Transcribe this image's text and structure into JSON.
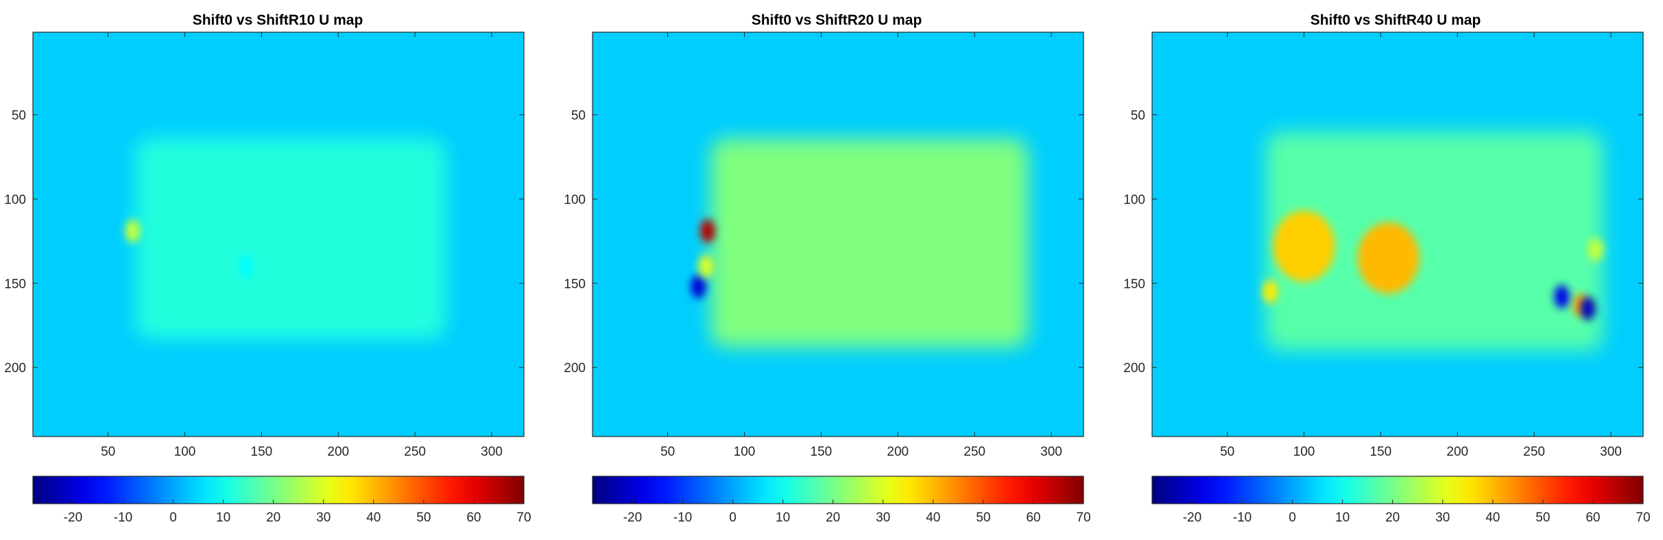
{
  "chart_data": [
    {
      "type": "heatmap",
      "title": "Shift0 vs ShiftR10 U map",
      "xlim": [
        1,
        321
      ],
      "ylim": [
        1,
        241
      ],
      "x_ticks": [
        50,
        100,
        150,
        200,
        250,
        300
      ],
      "y_ticks": [
        50,
        100,
        150,
        200
      ],
      "colorbar": {
        "colormap": "jet",
        "range": [
          -28,
          70
        ],
        "ticks": [
          -20,
          -10,
          0,
          10,
          20,
          30,
          40,
          50,
          60,
          70
        ]
      },
      "background_value": 4,
      "regions": [
        {
          "x": [
            68,
            270
          ],
          "y": [
            64,
            183
          ],
          "value": 12
        }
      ],
      "hotspots": [
        {
          "x": 66,
          "y": 119,
          "value": 28
        },
        {
          "x": 140,
          "y": 140,
          "value": 9
        }
      ]
    },
    {
      "type": "heatmap",
      "title": "Shift0 vs ShiftR20 U map",
      "xlim": [
        1,
        321
      ],
      "ylim": [
        1,
        241
      ],
      "x_ticks": [
        50,
        100,
        150,
        200,
        250,
        300
      ],
      "y_ticks": [
        50,
        100,
        150,
        200
      ],
      "colorbar": {
        "colormap": "jet",
        "range": [
          -28,
          70
        ],
        "ticks": [
          -20,
          -10,
          0,
          10,
          20,
          30,
          40,
          50,
          60,
          70
        ]
      },
      "background_value": 4,
      "regions": [
        {
          "x": [
            78,
            285
          ],
          "y": [
            64,
            188
          ],
          "value": 21
        }
      ],
      "hotspots": [
        {
          "x": 76,
          "y": 119,
          "value": 65
        },
        {
          "x": 70,
          "y": 152,
          "value": -20
        },
        {
          "x": 75,
          "y": 140,
          "value": 30
        }
      ]
    },
    {
      "type": "heatmap",
      "title": "Shift0 vs ShiftR40 U map",
      "xlim": [
        1,
        321
      ],
      "ylim": [
        1,
        241
      ],
      "x_ticks": [
        50,
        100,
        150,
        200,
        250,
        300
      ],
      "y_ticks": [
        50,
        100,
        150,
        200
      ],
      "colorbar": {
        "colormap": "jet",
        "range": [
          -28,
          70
        ],
        "ticks": [
          -20,
          -10,
          0,
          10,
          20,
          30,
          40,
          50,
          60,
          70
        ]
      },
      "background_value": 4,
      "regions": [
        {
          "x": [
            75,
            295
          ],
          "y": [
            60,
            190
          ],
          "value": 17
        }
      ],
      "hotspots": [
        {
          "x": 155,
          "y": 135,
          "value": 40
        },
        {
          "x": 100,
          "y": 128,
          "value": 38
        },
        {
          "x": 280,
          "y": 163,
          "value": 42
        },
        {
          "x": 78,
          "y": 155,
          "value": 35
        },
        {
          "x": 290,
          "y": 130,
          "value": 28
        },
        {
          "x": 268,
          "y": 158,
          "value": -18
        },
        {
          "x": 285,
          "y": 165,
          "value": -22
        }
      ]
    }
  ]
}
